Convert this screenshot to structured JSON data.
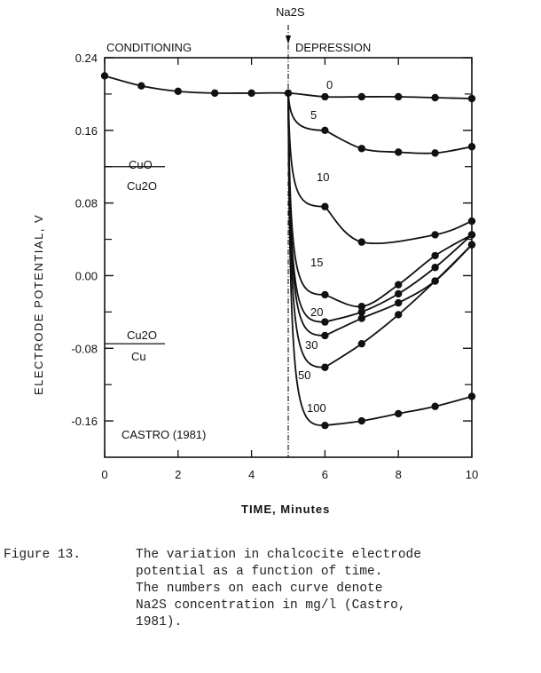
{
  "chart_data": {
    "type": "line",
    "xlabel": "TIME, Minutes",
    "ylabel": "ELECTRODE POTENTIAL, V",
    "xlim": [
      0,
      10
    ],
    "ylim": [
      -0.2,
      0.24
    ],
    "xticks": [
      "0",
      "2",
      "4",
      "6",
      "8",
      "10"
    ],
    "yticks": [
      "0.24",
      "0.16",
      "0.08",
      "0.00",
      "-0.08",
      "-0.16"
    ],
    "grid": false,
    "phase_labels": {
      "left": "CONDITIONING",
      "right": "DEPRESSION"
    },
    "event_label": "Na2S",
    "event_x": 5,
    "annotations": {
      "cuo_top": "CuO",
      "cuo_bottom": "Cu2O",
      "cuo_level": 0.12,
      "cu2o_top": "Cu2O",
      "cu2o_bottom": "Cu",
      "cu2o_level": -0.075,
      "source": "CASTRO (1981)"
    },
    "series": [
      {
        "name": "0",
        "x": [
          0,
          1,
          2,
          3,
          4,
          5,
          6,
          7,
          8,
          9,
          10
        ],
        "y": [
          0.22,
          0.209,
          0.203,
          0.201,
          0.201,
          0.201,
          0.197,
          0.197,
          0.197,
          0.196,
          0.195
        ]
      },
      {
        "name": "5",
        "x": [
          5,
          6,
          7,
          8,
          9,
          10
        ],
        "y": [
          0.201,
          0.16,
          0.14,
          0.136,
          0.135,
          0.142
        ]
      },
      {
        "name": "10",
        "x": [
          5,
          6,
          7,
          9,
          10
        ],
        "y": [
          0.201,
          0.076,
          0.037,
          0.045,
          0.06
        ]
      },
      {
        "name": "15",
        "x": [
          5,
          6,
          7,
          8,
          9,
          10
        ],
        "y": [
          0.201,
          -0.021,
          -0.034,
          -0.01,
          0.022,
          0.045
        ]
      },
      {
        "name": "20",
        "x": [
          5,
          6,
          7,
          8,
          9,
          10
        ],
        "y": [
          0.201,
          -0.051,
          -0.04,
          -0.02,
          0.009,
          0.045
        ]
      },
      {
        "name": "30",
        "x": [
          5,
          6,
          7,
          8,
          9,
          10
        ],
        "y": [
          0.201,
          -0.066,
          -0.047,
          -0.03,
          -0.006,
          0.034
        ]
      },
      {
        "name": "50",
        "x": [
          5,
          6,
          7,
          8,
          9,
          10
        ],
        "y": [
          0.201,
          -0.101,
          -0.075,
          -0.043,
          -0.006,
          0.034
        ]
      },
      {
        "name": "100",
        "x": [
          5,
          6,
          7,
          8,
          9,
          10
        ],
        "y": [
          0.201,
          -0.165,
          -0.16,
          -0.152,
          -0.144,
          -0.133
        ]
      }
    ]
  },
  "caption": {
    "label": "Figure 13.",
    "lines": [
      "The variation in chalcocite electrode",
      "potential as a function of time.",
      "The numbers on each curve denote",
      "Na2S concentration in mg/l (Castro,",
      "1981)."
    ]
  }
}
